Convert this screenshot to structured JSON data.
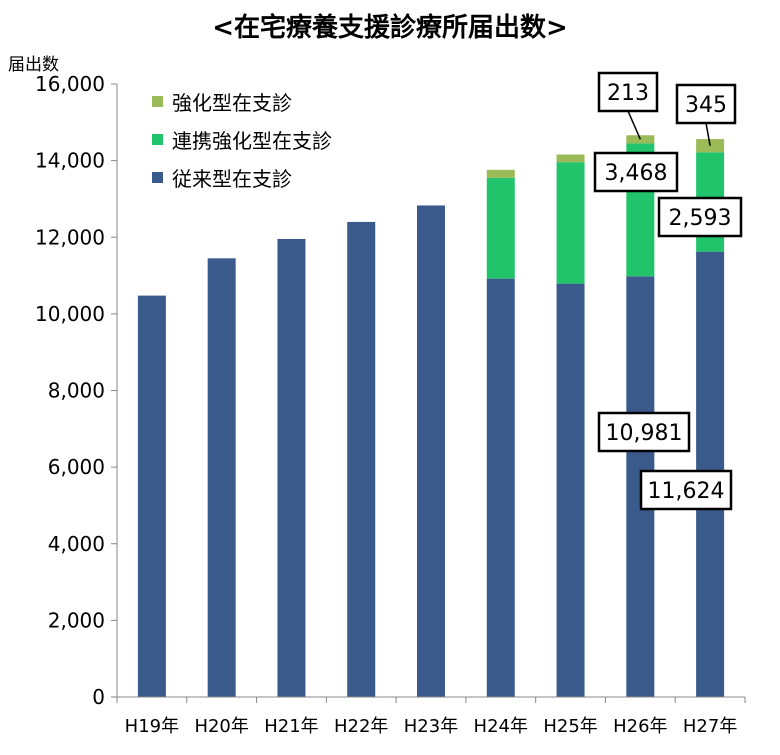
{
  "chart_data": {
    "type": "bar",
    "stacked": true,
    "title": "<在宅療養支援診療所届出数>",
    "xlabel": "",
    "ylabel": "届出数",
    "categories": [
      "H19年",
      "H20年",
      "H21年",
      "H22年",
      "H23年",
      "H24年",
      "H25年",
      "H26年",
      "H27年"
    ],
    "ylim": [
      0,
      16000
    ],
    "yticks": [
      "0",
      "2,000",
      "4,000",
      "6,000",
      "8,000",
      "10,000",
      "12,000",
      "14,000",
      "16,000"
    ],
    "grid": false,
    "legend_position": "top-left",
    "series": [
      {
        "name": "従来型在支診",
        "color": "#3a5a8c",
        "values": [
          10477,
          11450,
          11955,
          12400,
          12830,
          10920,
          10790,
          10981,
          11624
        ]
      },
      {
        "name": "連携強化型在支診",
        "color": "#21c46b",
        "values": [
          0,
          0,
          0,
          0,
          0,
          2630,
          3170,
          3468,
          2593
        ]
      },
      {
        "name": "強化型在支診",
        "color": "#9bbb59",
        "values": [
          0,
          0,
          0,
          0,
          0,
          210,
          200,
          213,
          345
        ]
      }
    ],
    "annotations": [
      {
        "text": "213",
        "category": "H26年",
        "series": "強化型在支診"
      },
      {
        "text": "3,468",
        "category": "H26年",
        "series": "連携強化型在支診"
      },
      {
        "text": "10,981",
        "category": "H26年",
        "series": "従来型在支診"
      },
      {
        "text": "345",
        "category": "H27年",
        "series": "強化型在支診"
      },
      {
        "text": "2,593",
        "category": "H27年",
        "series": "連携強化型在支診"
      },
      {
        "text": "11,624",
        "category": "H27年",
        "series": "従来型在支診"
      }
    ]
  }
}
